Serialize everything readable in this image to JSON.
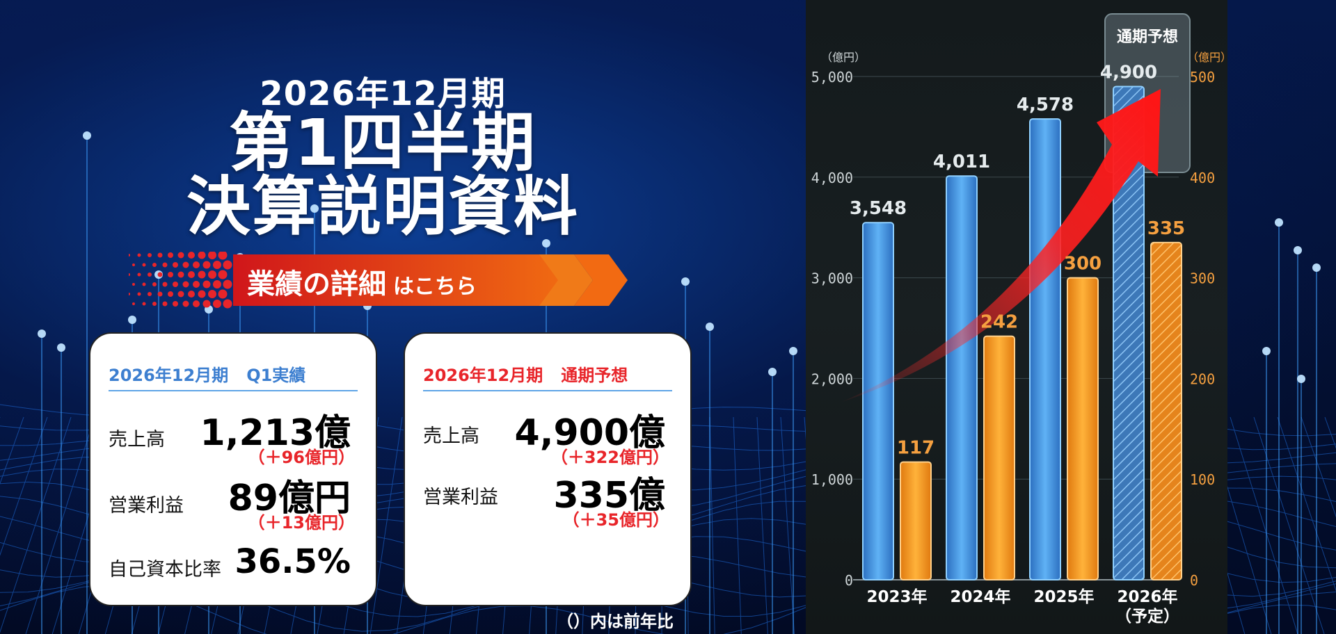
{
  "header": {
    "fiscal_period": "2026年12月期",
    "title_line1": "第1四半期",
    "title_line2": "決算説明資料"
  },
  "banner": {
    "main_label": "業績の詳細",
    "sub_label": "はこちら"
  },
  "q1_card": {
    "heading_period": "2026年12月期",
    "heading_kind": "Q1実績",
    "heading_color": "#3d7fd0",
    "rows": [
      {
        "label": "売上高",
        "value": "1,213億",
        "diff": "（＋96億円）"
      },
      {
        "label": "営業利益",
        "value": "89億円",
        "diff": "（＋13億円）"
      },
      {
        "label": "自己資本比率",
        "value": "36.5%",
        "diff": ""
      }
    ]
  },
  "forecast_card": {
    "heading_period": "2026年12月期",
    "heading_kind": "通期予想",
    "heading_color": "#e8252a",
    "rows": [
      {
        "label": "売上高",
        "value": "4,900億",
        "diff": "（＋322億円）"
      },
      {
        "label": "営業利益",
        "value": "335億",
        "diff": "（＋35億円）"
      }
    ]
  },
  "note": "（）内は前年比",
  "colors": {
    "revenue_bar": "#4a9ee8",
    "profit_bar": "#f59a1e",
    "arrow": "#ff2020",
    "diff_text": "#e8252a"
  },
  "chart_data": {
    "type": "bar",
    "categories": [
      "2023年",
      "2024年",
      "2025年",
      "2026年\n（予定）"
    ],
    "series": [
      {
        "values": [
          3548,
          4011,
          4578,
          4900
        ],
        "axis": "left",
        "color": "#4a9ee8",
        "data_labels": [
          "3,548",
          "4,011",
          "4,578",
          "4,900"
        ]
      },
      {
        "values": [
          117,
          242,
          300,
          335
        ],
        "axis": "right",
        "color": "#f59a1e",
        "data_labels": [
          "117",
          "242",
          "300",
          "335"
        ]
      }
    ],
    "forecast_category_index": 3,
    "forecast_label": "通期予想",
    "left_axis": {
      "unit": "（億円）",
      "ylim": [
        0,
        5000
      ],
      "ticks": [
        "0",
        "1,000",
        "2,000",
        "3,000",
        "4,000",
        "5,000"
      ]
    },
    "right_axis": {
      "unit": "（億円）",
      "ylim": [
        0,
        500
      ],
      "ticks": [
        "0",
        "100",
        "200",
        "300",
        "400",
        "500"
      ]
    },
    "grid": true
  }
}
